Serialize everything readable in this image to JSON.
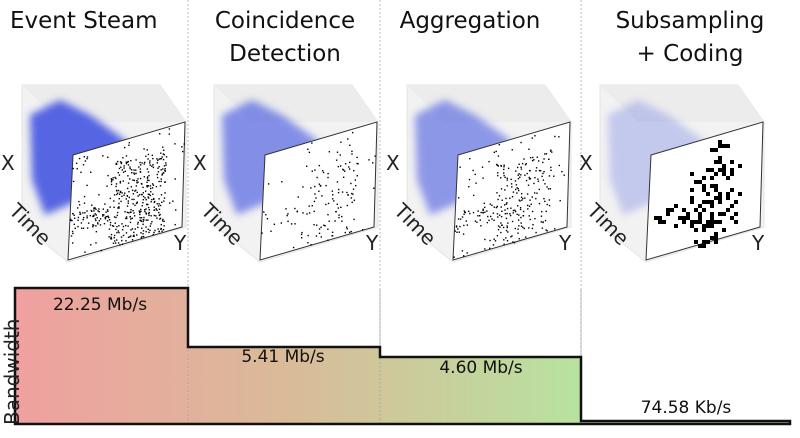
{
  "stages": [
    {
      "title_lines": [
        "Event Steam"
      ],
      "bandwidth": "22.25 Mb/s",
      "level": 22.25
    },
    {
      "title_lines": [
        "Coincidence",
        "Detection"
      ],
      "bandwidth": "5.41 Mb/s",
      "level": 5.41
    },
    {
      "title_lines": [
        "Aggregation"
      ],
      "bandwidth": "4.60 Mb/s",
      "level": 4.6
    },
    {
      "title_lines": [
        "Subsampling",
        "+ Coding"
      ],
      "bandwidth": "74.58 Kb/s",
      "level": 0.07458
    }
  ],
  "axes": {
    "x": "X",
    "y": "Y",
    "time": "Time"
  },
  "bandwidth_label": "Bandwidth",
  "colors": {
    "start": "#f0a0a0",
    "mid": "#d8bc98",
    "end": "#b8e2a0",
    "events": "#3a4de0",
    "outline": "#111111"
  }
}
